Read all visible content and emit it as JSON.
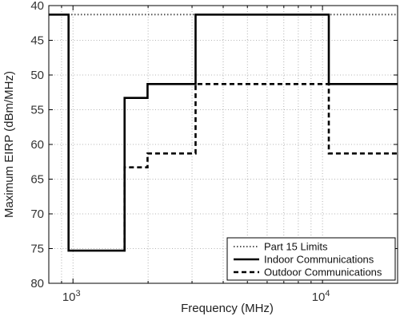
{
  "chart_data": {
    "type": "line",
    "xlabel": "Frequency  (MHz)",
    "ylabel": "Maximum EIRP (dBm/MHz)",
    "x_scale": "log",
    "xlim": [
      800,
      20000
    ],
    "ylim": [
      80,
      40
    ],
    "y_inverted": true,
    "x_ticks": [
      {
        "value": 1000,
        "base": "10",
        "exp": "3"
      },
      {
        "value": 10000,
        "base": "10",
        "exp": "4"
      }
    ],
    "y_ticks": [
      40,
      45,
      50,
      55,
      60,
      65,
      70,
      75,
      80
    ],
    "y_tick_labels": [
      "40",
      "45",
      "50",
      "55",
      "60",
      "65",
      "70",
      "75",
      "80"
    ],
    "grid": true,
    "legend_position": "bottom-right",
    "series": [
      {
        "name": "Part 15 Limits",
        "style": "dotted",
        "x": [
          800,
          20000
        ],
        "y": [
          41.3,
          41.3
        ]
      },
      {
        "name": "Indoor Communications",
        "style": "solid",
        "x": [
          800,
          960,
          960,
          1610,
          1610,
          1990,
          1990,
          3100,
          3100,
          10600,
          10600,
          20000
        ],
        "y": [
          41.3,
          41.3,
          75.3,
          75.3,
          53.3,
          53.3,
          51.3,
          51.3,
          41.3,
          41.3,
          51.3,
          51.3
        ]
      },
      {
        "name": "Outdoor Communications",
        "style": "dashed",
        "x": [
          1610,
          1610,
          1990,
          1990,
          3100,
          3100,
          10600,
          10600,
          20000
        ],
        "y": [
          75.3,
          63.3,
          63.3,
          61.3,
          61.3,
          51.3,
          51.3,
          61.3,
          61.3
        ]
      }
    ]
  }
}
